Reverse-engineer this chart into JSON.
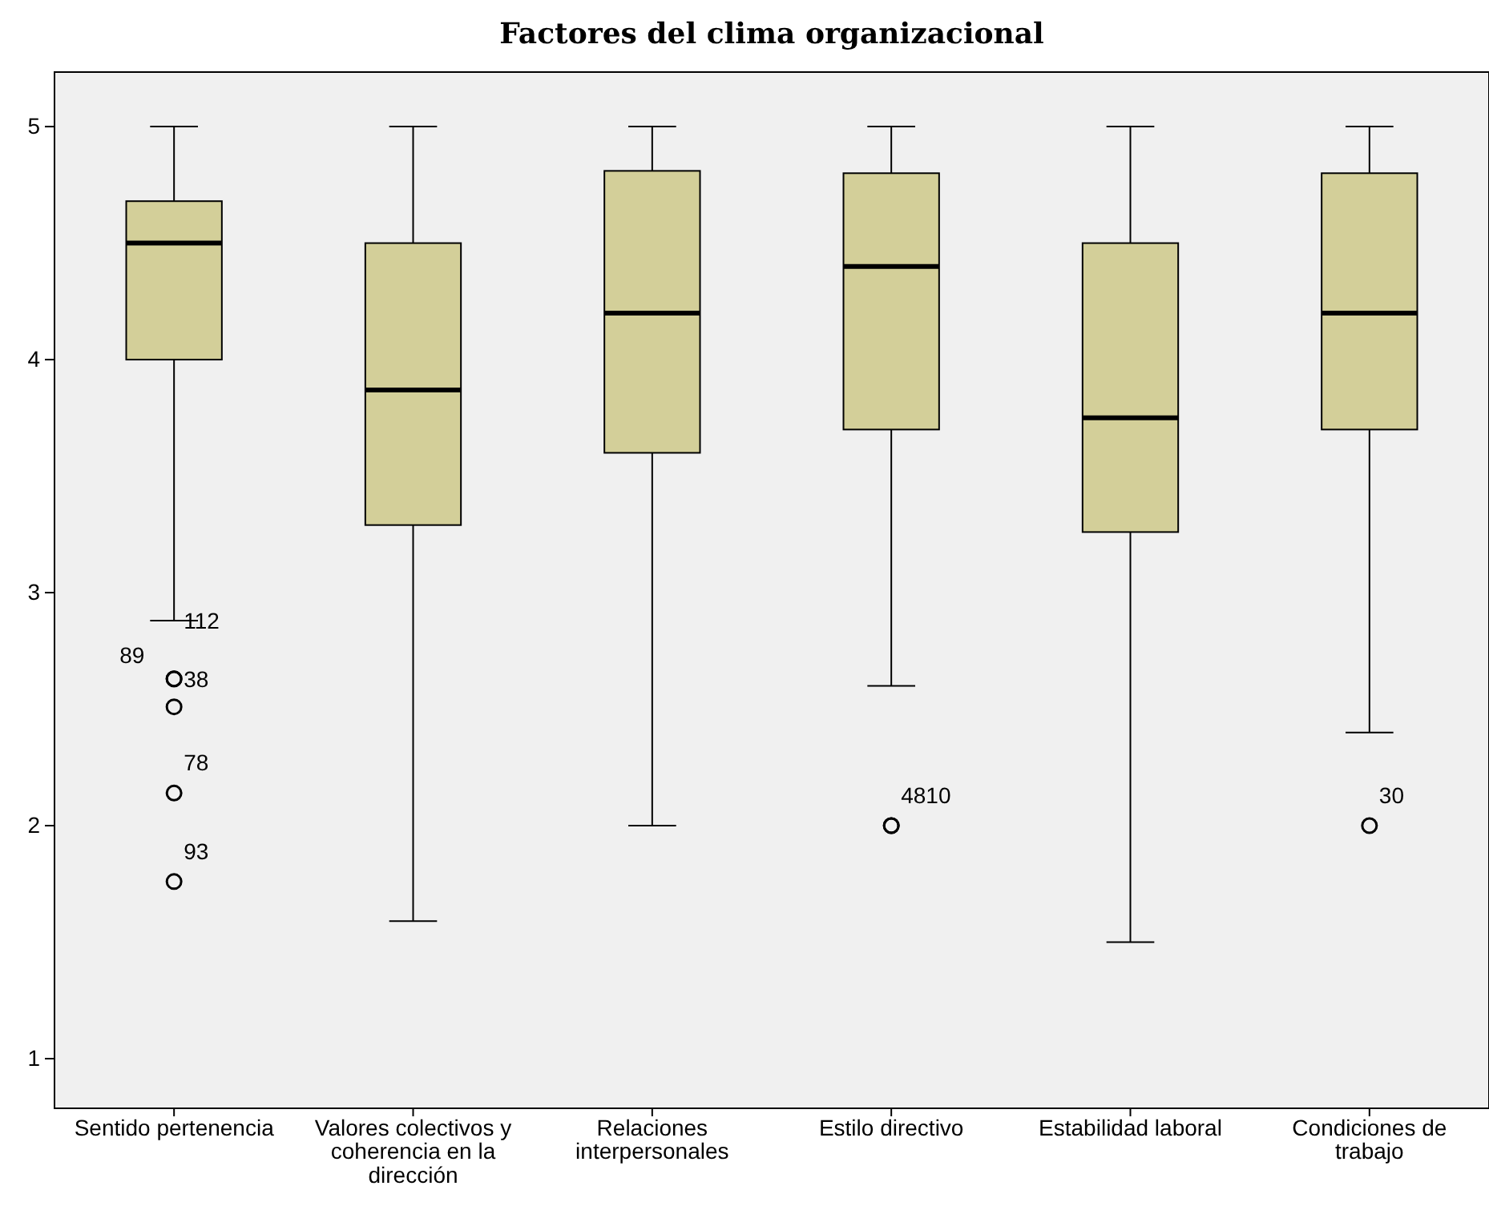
{
  "chart_data": {
    "type": "box",
    "title": "Factores del clima organizacional",
    "categories": [
      "Sentido pertenencia",
      "Valores colectivos y coherencia en la dirección",
      "Relaciones interpersonales",
      "Estilo directivo",
      "Estabilidad laboral",
      "Condiciones de trabajo"
    ],
    "color": "#d3cf99",
    "boxes": [
      {
        "low": 2.88,
        "q1": 4,
        "median": 4.5,
        "q3": 4.68,
        "high": 5,
        "outliers": [
          2.63,
          2.63,
          2.51,
          2.14,
          1.76
        ]
      },
      {
        "low": 1.59,
        "q1": 3.29,
        "median": 3.87,
        "q3": 4.5,
        "high": 5
      },
      {
        "low": 2,
        "q1": 3.6,
        "median": 4.2,
        "q3": 4.81,
        "high": 5
      },
      {
        "low": 2.6,
        "q1": 3.7,
        "median": 4.4,
        "q3": 4.8,
        "high": 5,
        "outliers": [
          2,
          2
        ]
      },
      {
        "low": 1.5,
        "q1": 3.26,
        "median": 3.75,
        "q3": 4.5,
        "high": 5
      },
      {
        "low": 2.4,
        "q1": 3.7,
        "median": 4.2,
        "q3": 4.8,
        "high": 5,
        "outliers": [
          2
        ]
      }
    ],
    "annotations": [
      "112",
      "89",
      "38",
      "78",
      "93",
      "48",
      "10",
      "30"
    ],
    "ylim": [
      0.787,
      5.234
    ],
    "yticks": [
      1,
      2,
      3,
      4,
      5
    ],
    "grid": false
  }
}
